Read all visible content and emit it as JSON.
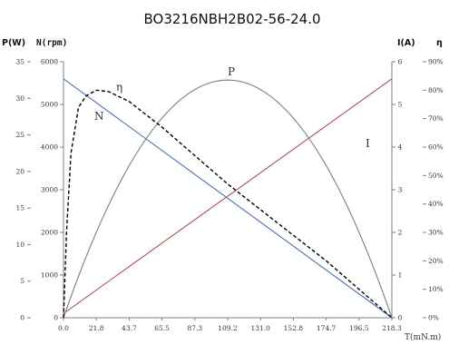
{
  "chart_data": {
    "type": "line",
    "title": "BO3216NBH2B02-56-24.0",
    "xlabel": "T(mN.m)",
    "xlim": [
      0,
      218.3
    ],
    "x_ticks": [
      "0.0",
      "21.8",
      "43.7",
      "65.5",
      "87.3",
      "109.2",
      "131.0",
      "152.8",
      "174.7",
      "196.5",
      "218.3"
    ],
    "axes": {
      "power": {
        "label": "P(W)",
        "ylim": [
          0,
          35
        ],
        "ticks": [
          "0",
          "5",
          "10",
          "15",
          "20",
          "25",
          "30",
          "35"
        ]
      },
      "speed": {
        "label": "N(rpm)",
        "ylim": [
          0,
          6000
        ],
        "ticks": [
          "0",
          "1000",
          "2000",
          "3000",
          "4000",
          "5000",
          "6000"
        ]
      },
      "current": {
        "label": "I(A)",
        "ylim": [
          0,
          6
        ],
        "ticks": [
          "0",
          "1",
          "2",
          "3",
          "4",
          "5",
          "6"
        ]
      },
      "efficiency": {
        "label": "η",
        "ylim": [
          0,
          90
        ],
        "ticks": [
          "0%",
          "10%",
          "20%",
          "30%",
          "40%",
          "50%",
          "60%",
          "70%",
          "80%",
          "90%"
        ]
      }
    },
    "series": [
      {
        "name": "N",
        "axis": "speed",
        "color": "#4472c4",
        "style": "solid",
        "x": [
          0,
          218.3
        ],
        "y": [
          5600,
          0
        ]
      },
      {
        "name": "I",
        "axis": "current",
        "color": "#c0504d",
        "style": "solid",
        "x": [
          0,
          218.3
        ],
        "y": [
          0.1,
          5.6
        ]
      },
      {
        "name": "P",
        "axis": "power",
        "color": "#7f7f7f",
        "style": "solid",
        "x": [
          0,
          21.8,
          43.7,
          65.5,
          87.3,
          109.2,
          131.0,
          152.8,
          174.7,
          196.5,
          218.3
        ],
        "y": [
          0,
          11.7,
          20.8,
          27.3,
          31.2,
          32.5,
          31.2,
          27.3,
          20.8,
          11.7,
          0
        ]
      },
      {
        "name": "η",
        "axis": "efficiency",
        "color": "#000000",
        "style": "dashed",
        "x": [
          0,
          2,
          5,
          10,
          15,
          21.8,
          30,
          43.7,
          65.5,
          87.3,
          109.2,
          131.0,
          152.8,
          174.7,
          196.5,
          218.3
        ],
        "y": [
          0,
          30,
          58,
          74,
          78,
          80,
          79.5,
          76,
          67,
          57,
          47,
          38,
          29,
          20,
          10,
          0
        ]
      }
    ],
    "legend": "inline-labels",
    "grid": false
  }
}
